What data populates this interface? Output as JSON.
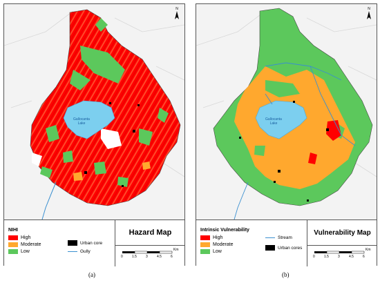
{
  "panels": [
    {
      "legend_title": "NIHI",
      "legend_items": [
        {
          "label": "High",
          "color": "#ff0000"
        },
        {
          "label": "Moderate",
          "color": "#ffa82e"
        },
        {
          "label": "Low",
          "color": "#5cc85c"
        }
      ],
      "extra_items": [
        {
          "label": "Urban core"
        },
        {
          "label": "Gully"
        }
      ],
      "map_title": "Hazard Map",
      "lake_label": "Gallocanta\nLake",
      "caption": "(a)"
    },
    {
      "legend_title": "Intrinsic Vulnerability",
      "legend_items": [
        {
          "label": "High",
          "color": "#ff0000"
        },
        {
          "label": "Moderate",
          "color": "#ffa82e"
        },
        {
          "label": "Low",
          "color": "#5cc85c"
        }
      ],
      "extra_items": [
        {
          "label": "Stream"
        },
        {
          "label": "Urban cores"
        }
      ],
      "map_title": "Vulnerability Map",
      "lake_label": "Gallocanta\nLake",
      "caption": "(b)"
    }
  ],
  "scale": {
    "ticks": [
      "0",
      "1.5",
      "3",
      "4.5",
      "6"
    ],
    "unit": "Km"
  },
  "colors": {
    "high": "#ff0000",
    "moderate": "#ffa82e",
    "low": "#5cc85c",
    "lake": "#7ccfef",
    "stream": "#3a8fd0",
    "urban": "#000000"
  },
  "icons": {
    "north_arrow": "north-arrow-icon"
  }
}
